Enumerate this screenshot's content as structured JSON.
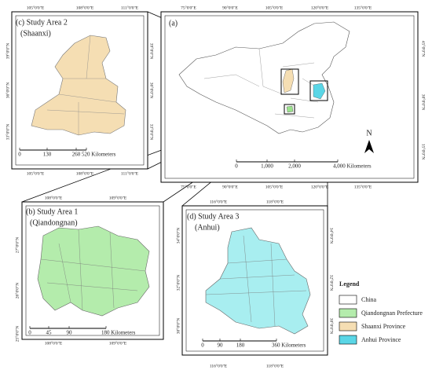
{
  "panel_a": {
    "label": "(a)",
    "top_ticks": [
      "75°0'0\"E",
      "90°0'0\"E",
      "105°0'0\"E",
      "120°0'0\"E",
      "135°0'0\"E"
    ],
    "bottom_ticks": [
      "75°0'0\"E",
      "90°0'0\"E",
      "105°0'0\"E",
      "120°0'0\"E",
      "135°0'0\"E"
    ],
    "right_ticks": [
      "45°0'0\"N",
      "30°0'0\"N",
      "15°0'0\"N"
    ],
    "scale": [
      "0",
      "1,000",
      "2,000",
      "4,000 Kilometers"
    ],
    "north": "N"
  },
  "panel_c": {
    "title": "(c) Study Area 2",
    "subtitle": "(Shaanxi)",
    "top_ticks": [
      "105°0'0\"E",
      "108°0'0\"E",
      "111°0'0\"E"
    ],
    "bottom_ticks": [
      "105°0'0\"E",
      "108°0'0\"E",
      "111°0'0\"E"
    ],
    "left_ticks": [
      "39°0'0\"N",
      "36°0'0\"N",
      "33°0'0\"N"
    ],
    "right_ticks": [
      "39°0'0\"N",
      "36°0'0\"N",
      "33°0'0\"N"
    ],
    "scale": [
      "0",
      "130",
      "260",
      "520 Kilometers"
    ]
  },
  "panel_b": {
    "title": "(b) Study Area 1",
    "subtitle": "(Qiandongnan)",
    "top_ticks": [
      "108°0'0\"E",
      "109°0'0\"E"
    ],
    "bottom_ticks": [
      "108°0'0\"E",
      "109°0'0\"E"
    ],
    "left_ticks": [
      "27°0'0\"N",
      "26°0'0\"N",
      "25°0'0\"N"
    ],
    "scale": [
      "0",
      "45",
      "90",
      "180 Kilometers"
    ]
  },
  "panel_d": {
    "title": "(d) Study Area 3",
    "subtitle": "(Anhui)",
    "top_ticks": [
      "116°0'0\"E",
      "118°0'0\"E"
    ],
    "bottom_ticks": [
      "116°0'0\"E",
      "118°0'0\"E"
    ],
    "left_ticks": [
      "34°0'0\"N",
      "32°0'0\"N",
      "30°0'0\"N"
    ],
    "right_ticks": [
      "34°0'0\"N",
      "32°0'0\"N",
      "30°0'0\"N"
    ],
    "scale": [
      "0",
      "90",
      "180",
      "360 Kilometers"
    ]
  },
  "legend": {
    "title": "Legend",
    "items": [
      "China",
      "Qiandongnan Prefecture",
      "Shaanxi Province",
      "Anhui Province"
    ]
  }
}
